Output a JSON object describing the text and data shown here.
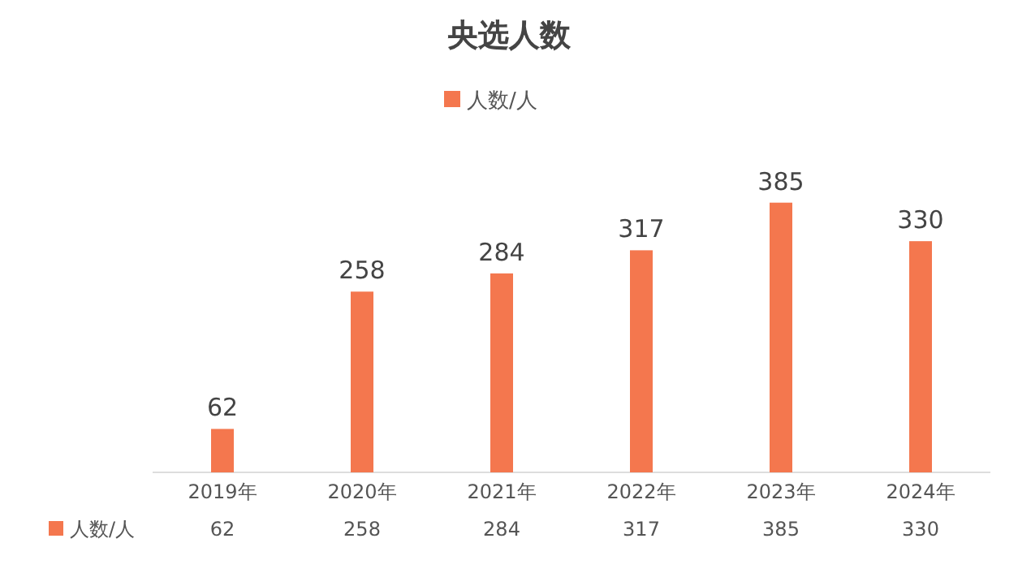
{
  "chart_data": {
    "type": "bar",
    "title": "央选人数",
    "categories": [
      "2019年",
      "2020年",
      "2021年",
      "2022年",
      "2023年",
      "2024年"
    ],
    "series": [
      {
        "name": "人数/人",
        "color": "#f4774e",
        "values": [
          62,
          258,
          284,
          317,
          385,
          330
        ],
        "value_labels": [
          "62",
          "258",
          "284",
          "317",
          "385",
          "330"
        ]
      }
    ],
    "annotations": [
      "人数/人",
      "62",
      "258",
      "284",
      "317",
      "385",
      "330"
    ],
    "legend": "top"
  }
}
